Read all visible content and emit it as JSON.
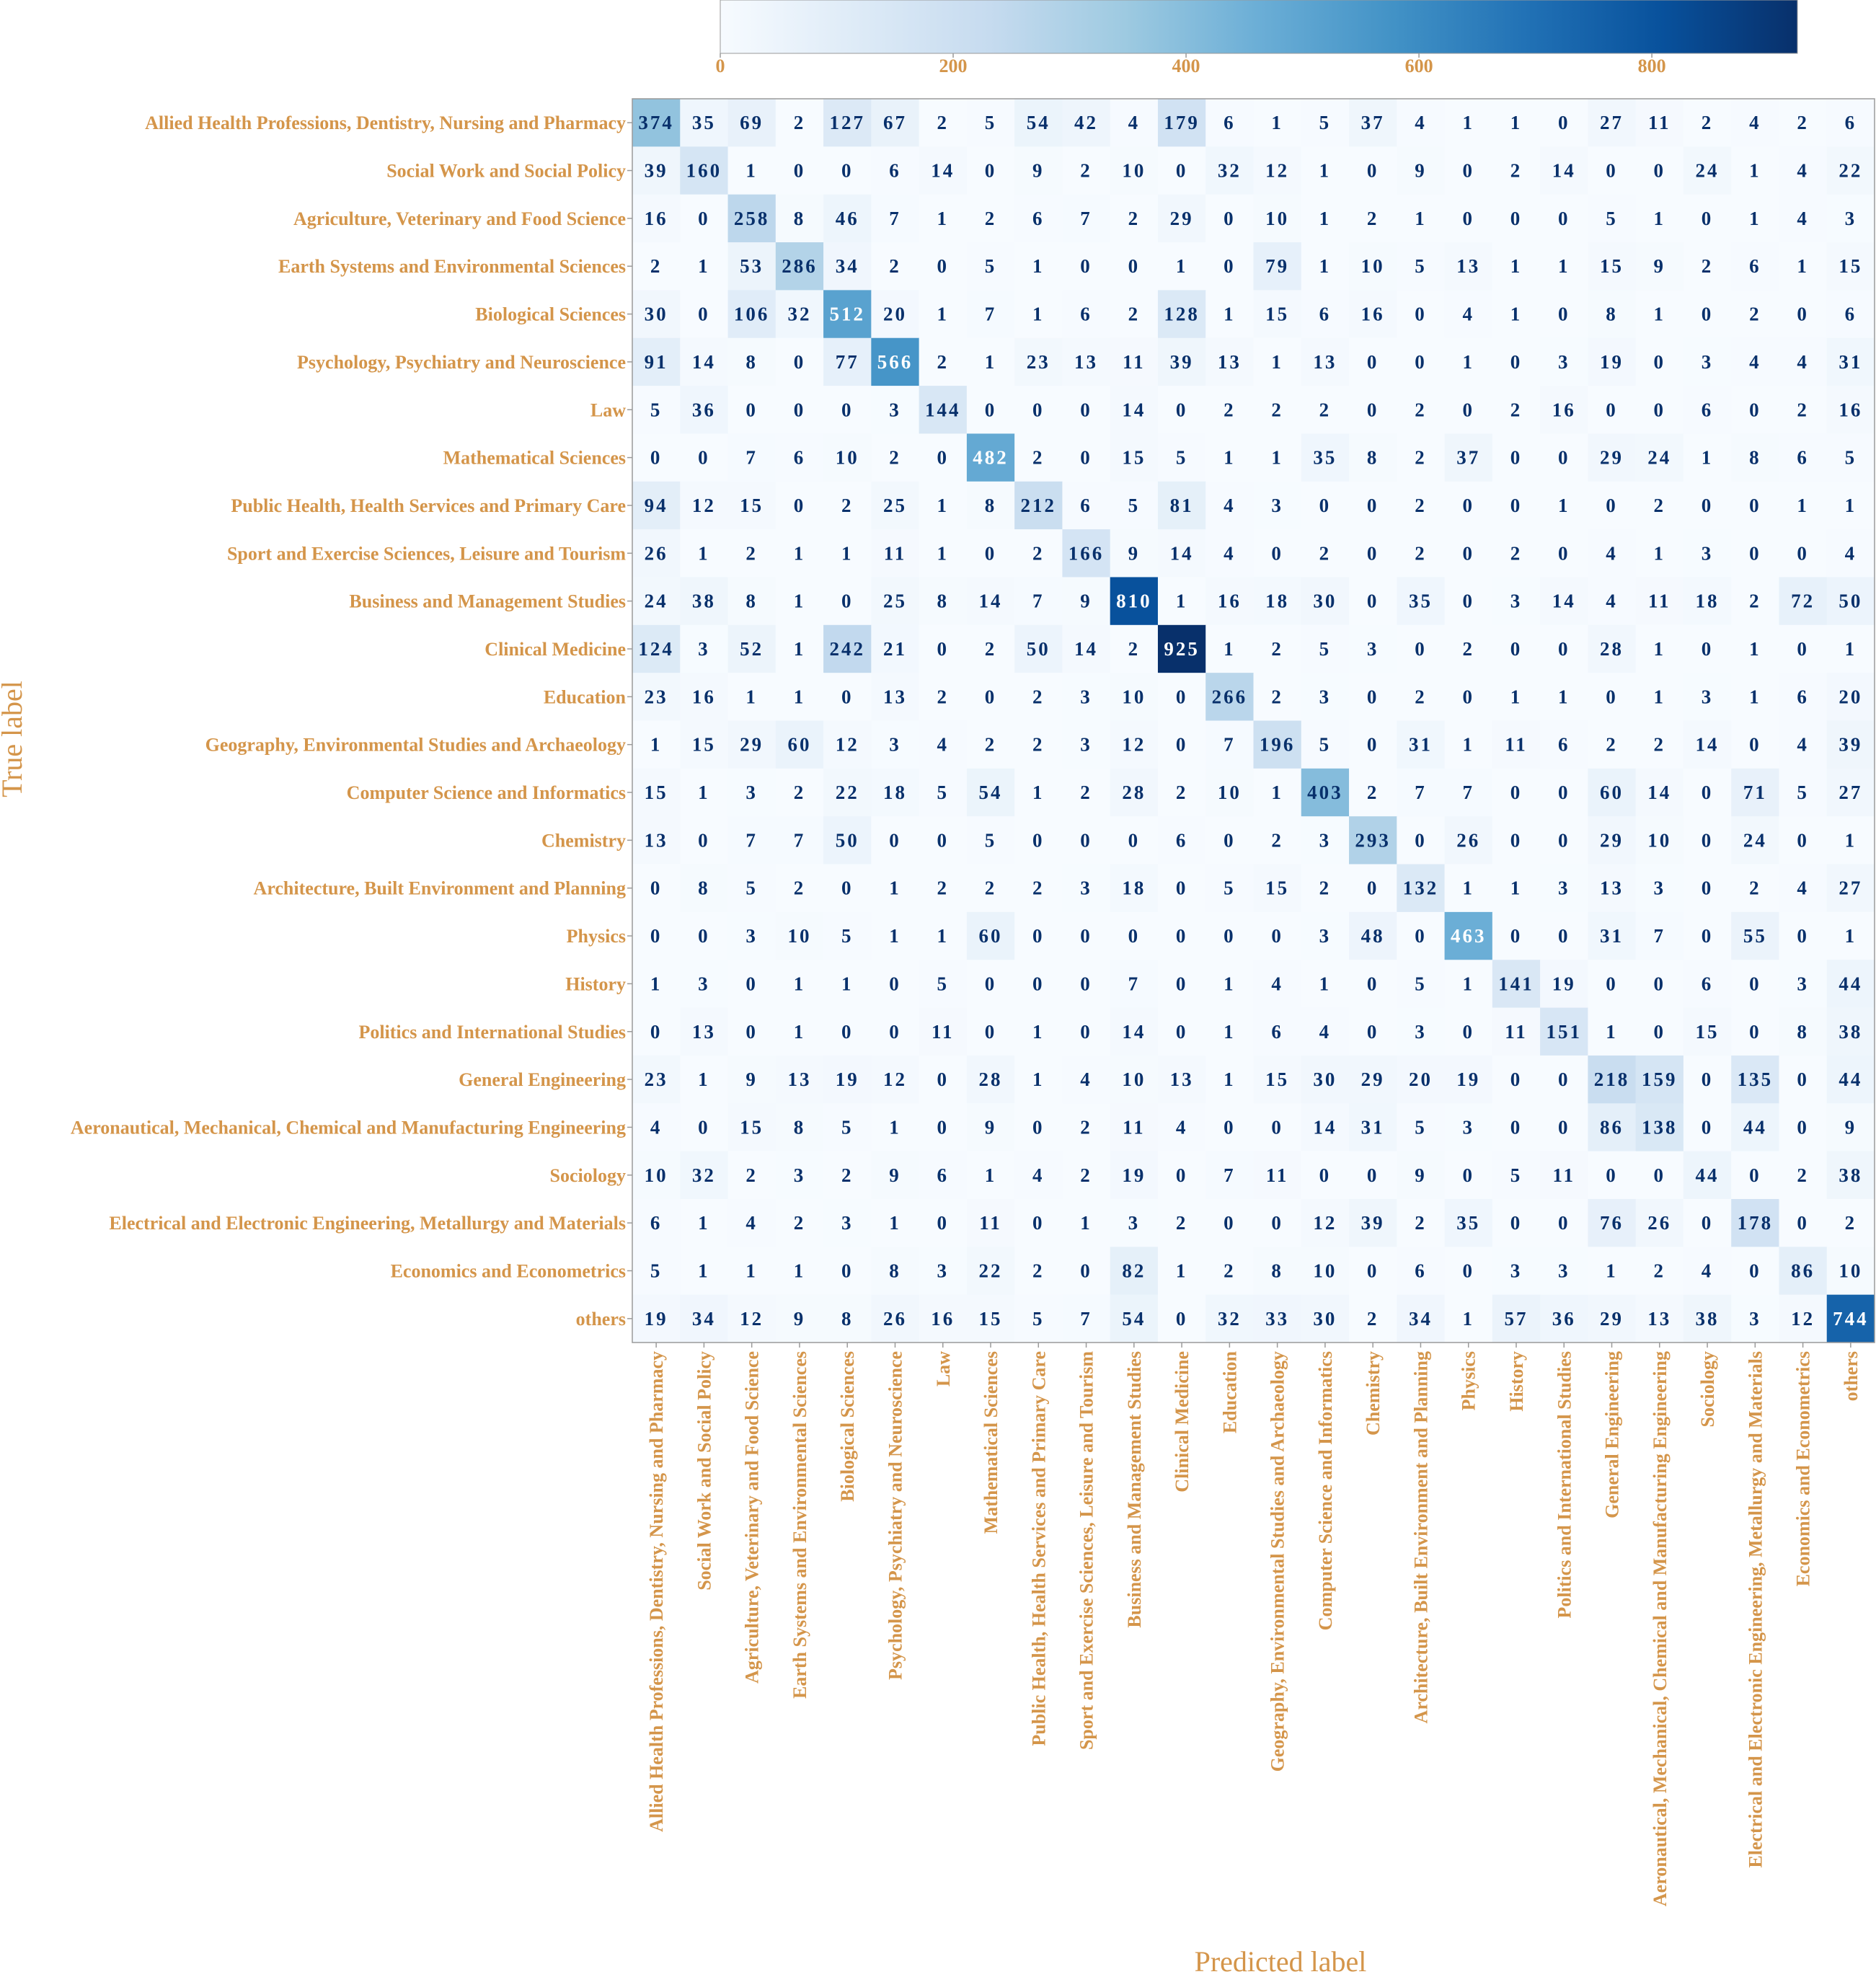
{
  "chart_data": {
    "type": "heatmap",
    "xlabel": "Predicted label",
    "ylabel": "True label",
    "labels": [
      "Allied Health Professions, Dentistry, Nursing and Pharmacy",
      "Social Work and Social Policy",
      "Agriculture, Veterinary and Food Science",
      "Earth Systems and Environmental Sciences",
      "Biological Sciences",
      "Psychology, Psychiatry and Neuroscience",
      "Law",
      "Mathematical Sciences",
      "Public Health, Health Services and Primary Care",
      "Sport and Exercise Sciences, Leisure and Tourism",
      "Business and Management Studies",
      "Clinical Medicine",
      "Education",
      "Geography, Environmental Studies and Archaeology",
      "Computer Science and Informatics",
      "Chemistry",
      "Architecture, Built Environment and Planning",
      "Physics",
      "History",
      "Politics and International Studies",
      "General Engineering",
      "Aeronautical, Mechanical, Chemical and Manufacturing Engineering",
      "Sociology",
      "Electrical and Electronic Engineering, Metallurgy and Materials",
      "Economics and Econometrics",
      "others"
    ],
    "matrix": [
      [
        374,
        35,
        69,
        2,
        127,
        67,
        2,
        5,
        54,
        42,
        4,
        179,
        6,
        1,
        5,
        37,
        4,
        1,
        1,
        0,
        27,
        11,
        2,
        4,
        2,
        6
      ],
      [
        39,
        160,
        1,
        0,
        0,
        6,
        14,
        0,
        9,
        2,
        10,
        0,
        32,
        12,
        1,
        0,
        9,
        0,
        2,
        14,
        0,
        0,
        24,
        1,
        4,
        22
      ],
      [
        16,
        0,
        258,
        8,
        46,
        7,
        1,
        2,
        6,
        7,
        2,
        29,
        0,
        10,
        1,
        2,
        1,
        0,
        0,
        0,
        5,
        1,
        0,
        1,
        4,
        3
      ],
      [
        2,
        1,
        53,
        286,
        34,
        2,
        0,
        5,
        1,
        0,
        0,
        1,
        0,
        79,
        1,
        10,
        5,
        13,
        1,
        1,
        15,
        9,
        2,
        6,
        1,
        15
      ],
      [
        30,
        0,
        106,
        32,
        512,
        20,
        1,
        7,
        1,
        6,
        2,
        128,
        1,
        15,
        6,
        16,
        0,
        4,
        1,
        0,
        8,
        1,
        0,
        2,
        0,
        6
      ],
      [
        91,
        14,
        8,
        0,
        77,
        566,
        2,
        1,
        23,
        13,
        11,
        39,
        13,
        1,
        13,
        0,
        0,
        1,
        0,
        3,
        19,
        0,
        3,
        4,
        4,
        31
      ],
      [
        5,
        36,
        0,
        0,
        0,
        3,
        144,
        0,
        0,
        0,
        14,
        0,
        2,
        2,
        2,
        0,
        2,
        0,
        2,
        16,
        0,
        0,
        6,
        0,
        2,
        16
      ],
      [
        0,
        0,
        7,
        6,
        10,
        2,
        0,
        482,
        2,
        0,
        15,
        5,
        1,
        1,
        35,
        8,
        2,
        37,
        0,
        0,
        29,
        24,
        1,
        8,
        6,
        5
      ],
      [
        94,
        12,
        15,
        0,
        2,
        25,
        1,
        8,
        212,
        6,
        5,
        81,
        4,
        3,
        0,
        0,
        2,
        0,
        0,
        1,
        0,
        2,
        0,
        0,
        1,
        1
      ],
      [
        26,
        1,
        2,
        1,
        1,
        11,
        1,
        0,
        2,
        166,
        9,
        14,
        4,
        0,
        2,
        0,
        2,
        0,
        2,
        0,
        4,
        1,
        3,
        0,
        0,
        4
      ],
      [
        24,
        38,
        8,
        1,
        0,
        25,
        8,
        14,
        7,
        9,
        810,
        1,
        16,
        18,
        30,
        0,
        35,
        0,
        3,
        14,
        4,
        11,
        18,
        2,
        72,
        50
      ],
      [
        124,
        3,
        52,
        1,
        242,
        21,
        0,
        2,
        50,
        14,
        2,
        925,
        1,
        2,
        5,
        3,
        0,
        2,
        0,
        0,
        28,
        1,
        0,
        1,
        0,
        1
      ],
      [
        23,
        16,
        1,
        1,
        0,
        13,
        2,
        0,
        2,
        3,
        10,
        0,
        266,
        2,
        3,
        0,
        2,
        0,
        1,
        1,
        0,
        1,
        3,
        1,
        6,
        20
      ],
      [
        1,
        15,
        29,
        60,
        12,
        3,
        4,
        2,
        2,
        3,
        12,
        0,
        7,
        196,
        5,
        0,
        31,
        1,
        11,
        6,
        2,
        2,
        14,
        0,
        4,
        39
      ],
      [
        15,
        1,
        3,
        2,
        22,
        18,
        5,
        54,
        1,
        2,
        28,
        2,
        10,
        1,
        403,
        2,
        7,
        7,
        0,
        0,
        60,
        14,
        0,
        71,
        5,
        27
      ],
      [
        13,
        0,
        7,
        7,
        50,
        0,
        0,
        5,
        0,
        0,
        0,
        6,
        0,
        2,
        3,
        293,
        0,
        26,
        0,
        0,
        29,
        10,
        0,
        24,
        0,
        1
      ],
      [
        0,
        8,
        5,
        2,
        0,
        1,
        2,
        2,
        2,
        3,
        18,
        0,
        5,
        15,
        2,
        0,
        132,
        1,
        1,
        3,
        13,
        3,
        0,
        2,
        4,
        27
      ],
      [
        0,
        0,
        3,
        10,
        5,
        1,
        1,
        60,
        0,
        0,
        0,
        0,
        0,
        0,
        3,
        48,
        0,
        463,
        0,
        0,
        31,
        7,
        0,
        55,
        0,
        1
      ],
      [
        1,
        3,
        0,
        1,
        1,
        0,
        5,
        0,
        0,
        0,
        7,
        0,
        1,
        4,
        1,
        0,
        5,
        1,
        141,
        19,
        0,
        0,
        6,
        0,
        3,
        44
      ],
      [
        0,
        13,
        0,
        1,
        0,
        0,
        11,
        0,
        1,
        0,
        14,
        0,
        1,
        6,
        4,
        0,
        3,
        0,
        11,
        151,
        1,
        0,
        15,
        0,
        8,
        38
      ],
      [
        23,
        1,
        9,
        13,
        19,
        12,
        0,
        28,
        1,
        4,
        10,
        13,
        1,
        15,
        30,
        29,
        20,
        19,
        0,
        0,
        218,
        159,
        0,
        135,
        0,
        44
      ],
      [
        4,
        0,
        15,
        8,
        5,
        1,
        0,
        9,
        0,
        2,
        11,
        4,
        0,
        0,
        14,
        31,
        5,
        3,
        0,
        0,
        86,
        138,
        0,
        44,
        0,
        9
      ],
      [
        10,
        32,
        2,
        3,
        2,
        9,
        6,
        1,
        4,
        2,
        19,
        0,
        7,
        11,
        0,
        0,
        9,
        0,
        5,
        11,
        0,
        0,
        44,
        0,
        2,
        38
      ],
      [
        6,
        1,
        4,
        2,
        3,
        1,
        0,
        11,
        0,
        1,
        3,
        2,
        0,
        0,
        12,
        39,
        2,
        35,
        0,
        0,
        76,
        26,
        0,
        178,
        0,
        2
      ],
      [
        5,
        1,
        1,
        1,
        0,
        8,
        3,
        22,
        2,
        0,
        82,
        1,
        2,
        8,
        10,
        0,
        6,
        0,
        3,
        3,
        1,
        2,
        4,
        0,
        86,
        10
      ],
      [
        19,
        34,
        12,
        9,
        8,
        26,
        16,
        15,
        5,
        7,
        54,
        0,
        32,
        33,
        30,
        2,
        34,
        1,
        57,
        36,
        29,
        13,
        38,
        3,
        12,
        744
      ]
    ],
    "colorbar": {
      "colormap": "Blues",
      "range": [
        0,
        925
      ],
      "ticks": [
        0,
        200,
        400,
        600,
        800
      ]
    }
  }
}
